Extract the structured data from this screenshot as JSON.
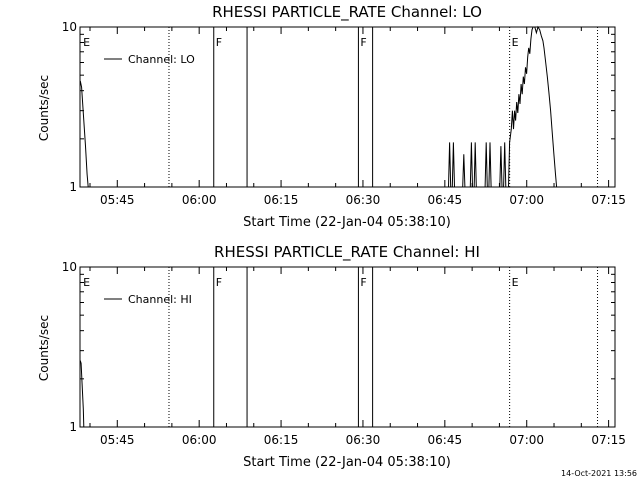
{
  "footer": {
    "timestamp": "14-Oct-2021 13:56"
  },
  "chart_data": [
    {
      "type": "line",
      "title": "RHESSI PARTICLE_RATE Channel: LO",
      "xlabel": "Start Time (22-Jan-04 05:38:10)",
      "ylabel": "Counts/sec",
      "yscale": "log",
      "ylim": [
        1,
        10
      ],
      "ytick_labels": [
        "1",
        "10"
      ],
      "xlim_minutes": [
        0,
        98
      ],
      "xtick_labels": [
        "05:45",
        "06:00",
        "06:15",
        "06:30",
        "06:45",
        "07:00",
        "07:15"
      ],
      "xtick_minutes": [
        6.83,
        21.83,
        36.83,
        51.83,
        66.83,
        81.83,
        96.83
      ],
      "legend": {
        "label": "Channel: LO",
        "position": "top-left"
      },
      "markers": [
        {
          "label": "E",
          "minute": 0.2,
          "style": "none"
        },
        {
          "label": "",
          "minute": 16.3,
          "style": "dotted"
        },
        {
          "label": "F",
          "minute": 24.5,
          "style": "solid"
        },
        {
          "label": "",
          "minute": 30.6,
          "style": "solid"
        },
        {
          "label": "F",
          "minute": 51.0,
          "style": "solid"
        },
        {
          "label": "",
          "minute": 53.6,
          "style": "solid"
        },
        {
          "label": "E",
          "minute": 78.7,
          "style": "dotted"
        },
        {
          "label": "",
          "minute": 94.8,
          "style": "dotted"
        }
      ],
      "series": [
        {
          "name": "Channel: LO",
          "points": [
            [
              0.05,
              4.6
            ],
            [
              0.3,
              4.2
            ],
            [
              0.7,
              2.6
            ],
            [
              1.0,
              1.8
            ],
            [
              1.3,
              1.2
            ],
            [
              1.5,
              1.0
            ],
            [
              67.5,
              1.0
            ],
            [
              67.7,
              1.9
            ],
            [
              67.9,
              1.0
            ],
            [
              68.2,
              1.0
            ],
            [
              68.4,
              1.9
            ],
            [
              68.6,
              1.0
            ],
            [
              70.1,
              1.0
            ],
            [
              70.3,
              1.6
            ],
            [
              70.5,
              1.0
            ],
            [
              71.5,
              1.0
            ],
            [
              71.7,
              1.9
            ],
            [
              71.9,
              1.0
            ],
            [
              72.2,
              1.0
            ],
            [
              72.4,
              1.9
            ],
            [
              72.6,
              1.0
            ],
            [
              74.2,
              1.0
            ],
            [
              74.4,
              1.9
            ],
            [
              74.6,
              1.0
            ],
            [
              74.9,
              1.0
            ],
            [
              75.1,
              1.9
            ],
            [
              75.3,
              1.0
            ],
            [
              76.9,
              1.0
            ],
            [
              77.1,
              1.8
            ],
            [
              77.3,
              1.0
            ],
            [
              77.6,
              1.0
            ],
            [
              77.8,
              1.9
            ],
            [
              78.0,
              1.0
            ],
            [
              78.5,
              1.0
            ],
            [
              78.7,
              1.9
            ],
            [
              79.0,
              2.3
            ],
            [
              79.2,
              3.0
            ],
            [
              79.4,
              2.3
            ],
            [
              79.6,
              3.0
            ],
            [
              79.8,
              2.6
            ],
            [
              80.0,
              3.4
            ],
            [
              80.2,
              2.9
            ],
            [
              80.4,
              3.8
            ],
            [
              80.6,
              3.3
            ],
            [
              80.8,
              4.4
            ],
            [
              81.0,
              3.8
            ],
            [
              81.2,
              4.9
            ],
            [
              81.4,
              4.4
            ],
            [
              81.6,
              5.6
            ],
            [
              81.8,
              5.1
            ],
            [
              82.0,
              6.5
            ],
            [
              82.2,
              7.4
            ],
            [
              82.4,
              6.8
            ],
            [
              82.6,
              8.4
            ],
            [
              82.8,
              9.6
            ],
            [
              83.0,
              10
            ],
            [
              83.3,
              10
            ],
            [
              83.6,
              9.2
            ],
            [
              83.9,
              10
            ],
            [
              84.2,
              9.6
            ],
            [
              84.5,
              8.8
            ],
            [
              84.8,
              8.2
            ],
            [
              85.0,
              7.4
            ],
            [
              85.3,
              6.0
            ],
            [
              85.6,
              4.9
            ],
            [
              85.9,
              3.9
            ],
            [
              86.2,
              3.0
            ],
            [
              86.5,
              2.2
            ],
            [
              86.8,
              1.6
            ],
            [
              87.1,
              1.2
            ],
            [
              87.3,
              1.0
            ]
          ]
        }
      ]
    },
    {
      "type": "line",
      "title": "RHESSI PARTICLE_RATE Channel: HI",
      "xlabel": "Start Time (22-Jan-04 05:38:10)",
      "ylabel": "Counts/sec",
      "yscale": "log",
      "ylim": [
        1,
        10
      ],
      "ytick_labels": [
        "1",
        "10"
      ],
      "xlim_minutes": [
        0,
        98
      ],
      "xtick_labels": [
        "05:45",
        "06:00",
        "06:15",
        "06:30",
        "06:45",
        "07:00",
        "07:15"
      ],
      "xtick_minutes": [
        6.83,
        21.83,
        36.83,
        51.83,
        66.83,
        81.83,
        96.83
      ],
      "legend": {
        "label": "Channel: HI",
        "position": "top-left"
      },
      "markers": [
        {
          "label": "E",
          "minute": 0.2,
          "style": "none"
        },
        {
          "label": "",
          "minute": 16.3,
          "style": "dotted"
        },
        {
          "label": "F",
          "minute": 24.5,
          "style": "solid"
        },
        {
          "label": "",
          "minute": 30.6,
          "style": "solid"
        },
        {
          "label": "F",
          "minute": 51.0,
          "style": "solid"
        },
        {
          "label": "",
          "minute": 53.6,
          "style": "solid"
        },
        {
          "label": "E",
          "minute": 78.7,
          "style": "dotted"
        },
        {
          "label": "",
          "minute": 94.8,
          "style": "dotted"
        }
      ],
      "series": [
        {
          "name": "Channel: HI",
          "points": [
            [
              0.05,
              2.6
            ],
            [
              0.2,
              2.5
            ],
            [
              0.4,
              1.8
            ],
            [
              0.6,
              1.3
            ],
            [
              0.7,
              1.0
            ]
          ]
        }
      ]
    }
  ]
}
